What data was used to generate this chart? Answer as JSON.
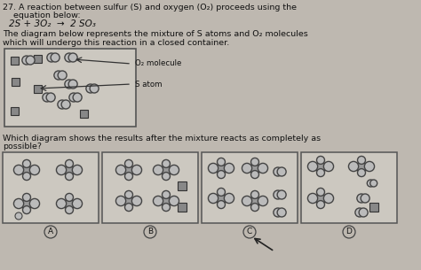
{
  "bg_color": "#c8c0b8",
  "page_bg": "#beb8b0",
  "title_line1": "27. A reaction between sulfur (S) and oxygen (O₂) proceeds using the",
  "title_line2": "    equation below:",
  "equation": "2S + 3O₂  →  2 SO₃",
  "desc_text": "The diagram below represents the mixture of S atoms and O₂ molecules\nwhich will undergo this reaction in a closed container.",
  "legend_o2": "O₂ molecule",
  "legend_s": "S atom",
  "question_line1": "Which diagram shows the results after the mixture reacts as completely as",
  "question_line2": "possible?",
  "labels": [
    "A",
    "B",
    "C",
    "D"
  ],
  "text_color": "#111111",
  "box_face": "#d4cec8",
  "box_edge": "#666666",
  "s_face": "#888888",
  "s_edge": "#333333",
  "o_face": "#bbbbbb",
  "o_edge": "#444444",
  "so3_center_face": "#999999",
  "so3_center_edge": "#333333"
}
